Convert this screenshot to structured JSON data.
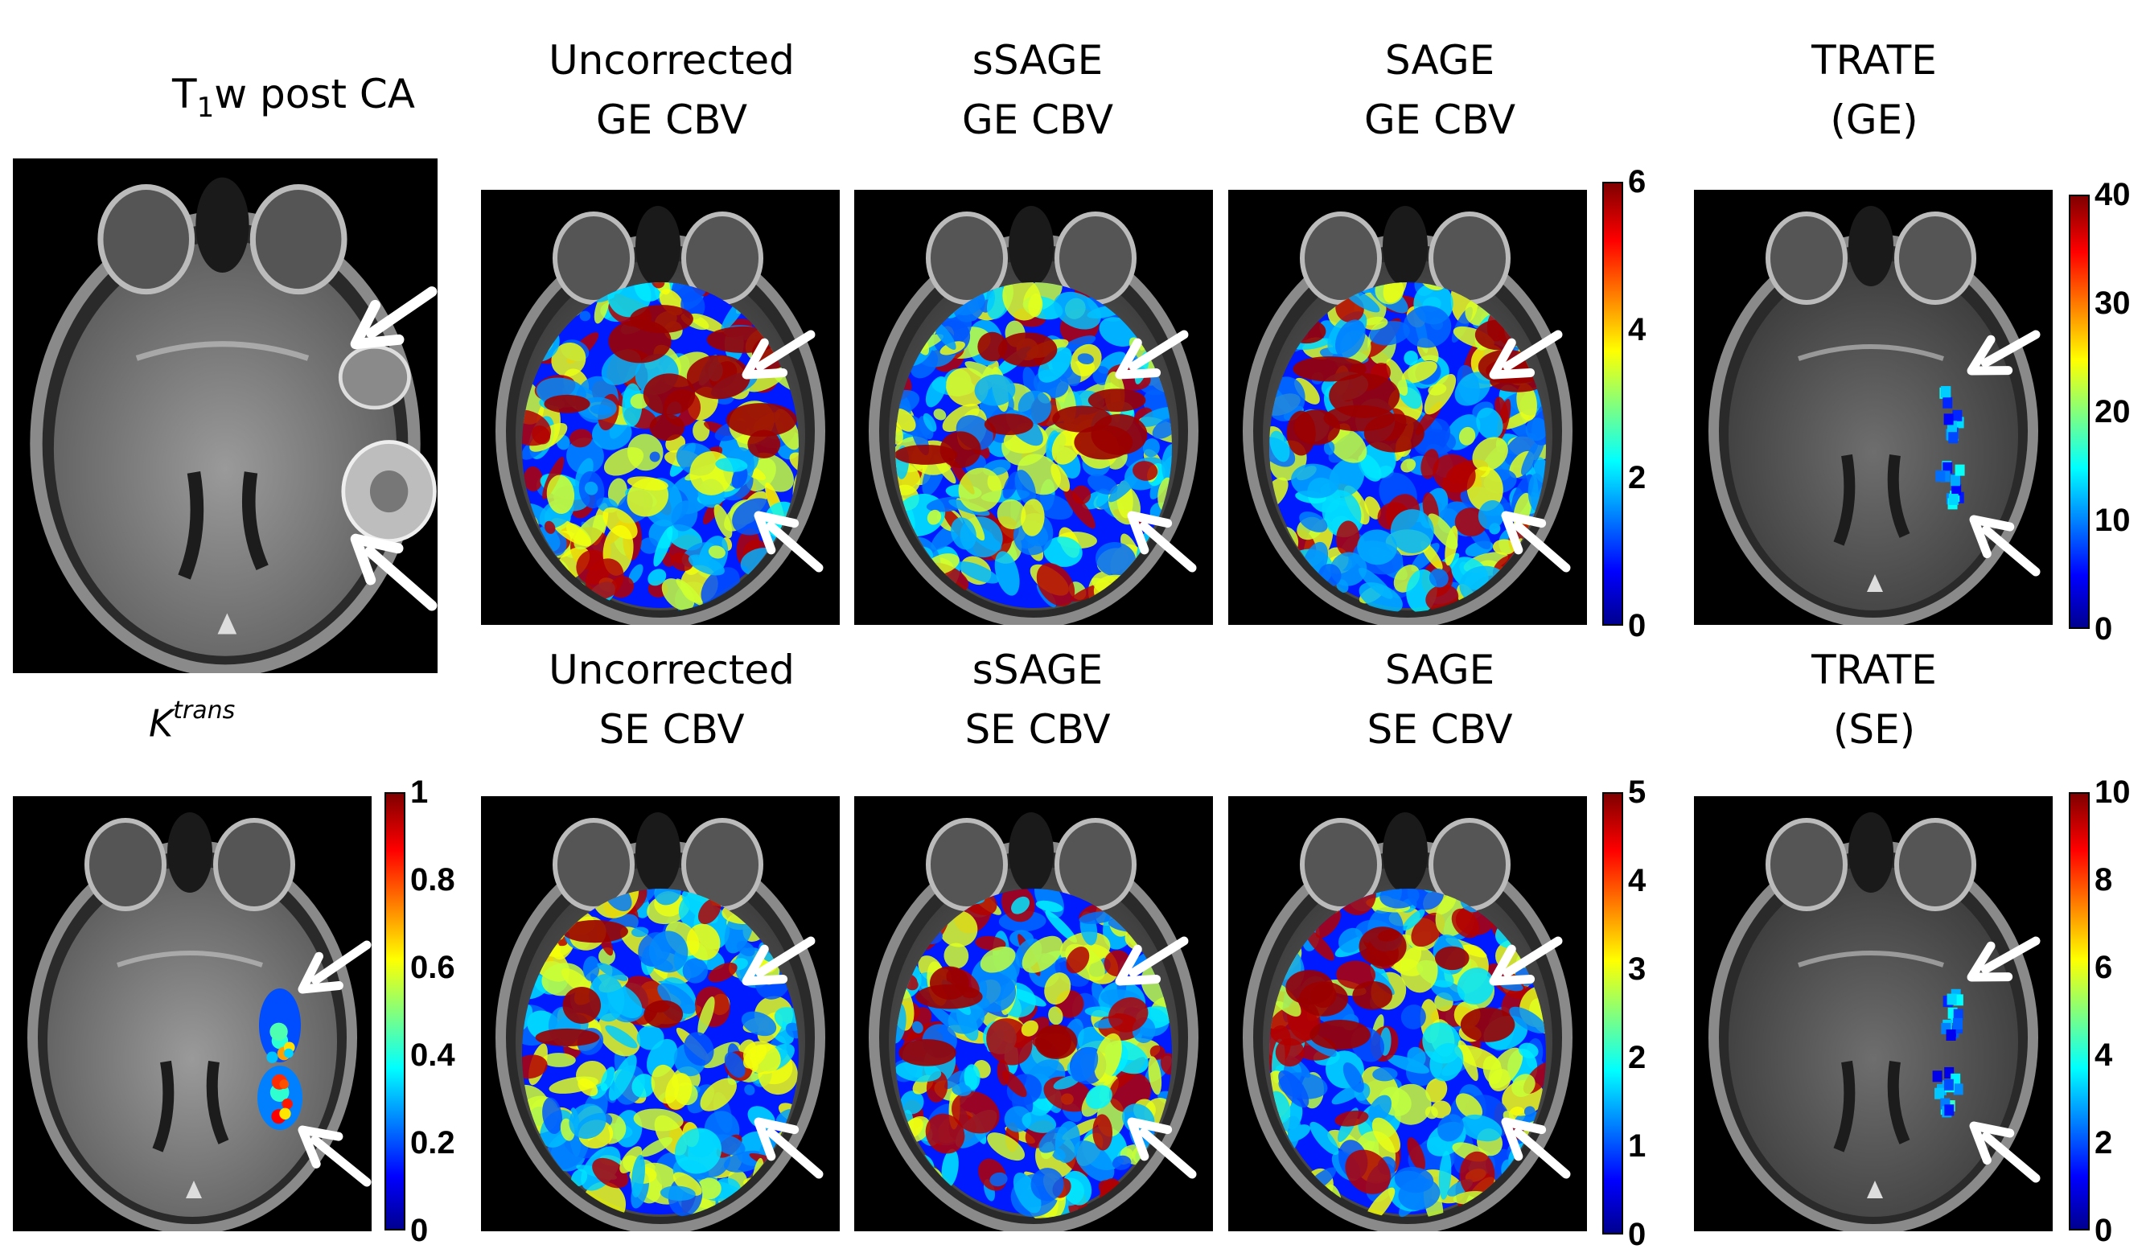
{
  "titles": {
    "t1w": {
      "main": "T",
      "sub": "1",
      "rest": "w post CA"
    },
    "ktrans": {
      "base": "K",
      "sup": "trans"
    },
    "ge_uncorr": [
      "Uncorrected",
      "GE CBV"
    ],
    "ge_ssage": [
      "sSAGE",
      "GE CBV"
    ],
    "ge_sage": [
      "SAGE",
      "GE CBV"
    ],
    "trate_ge": [
      "TRATE",
      "(GE)"
    ],
    "se_uncorr": [
      "Uncorrected",
      "SE CBV"
    ],
    "se_ssage": [
      "sSAGE",
      "SE CBV"
    ],
    "se_sage": [
      "SAGE",
      "SE CBV"
    ],
    "trate_se": [
      "TRATE",
      "(SE)"
    ]
  },
  "colorbars": {
    "ge_cbv": [
      "6",
      "4",
      "2",
      "0"
    ],
    "trate_ge": [
      "40",
      "30",
      "20",
      "10",
      "0"
    ],
    "ktrans": [
      "1",
      "0.8",
      "0.6",
      "0.4",
      "0.2",
      "0"
    ],
    "se_cbv": [
      "5",
      "4",
      "3",
      "2",
      "1",
      "0"
    ],
    "trate_se": [
      "10",
      "8",
      "6",
      "4",
      "2",
      "0"
    ]
  },
  "colormap": "jet",
  "colors": {
    "arrow": "#ffffff",
    "background": "#000000"
  }
}
